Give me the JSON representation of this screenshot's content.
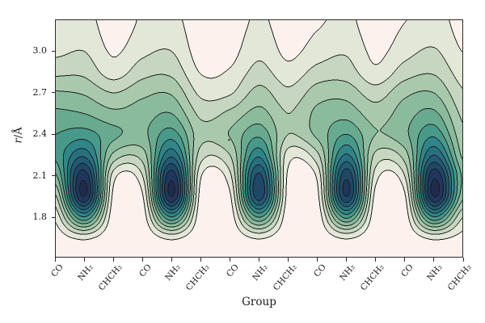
{
  "chart_data": {
    "type": "contour_filled",
    "title": "",
    "xlabel": "Group",
    "ylabel_var": "r",
    "ylabel_unit": "/Å",
    "x_categories": [
      "CO",
      "NH₂",
      "CHCH₂",
      "CO",
      "NH₂",
      "CHCH₂",
      "CO",
      "NH₂",
      "CHCH₂",
      "CO",
      "NH₂",
      "CHCH₂",
      "CO",
      "NH₂",
      "CHCH₂"
    ],
    "y_ticks": [
      {
        "label": "1.8",
        "value": 1.8
      },
      {
        "label": "2.1",
        "value": 2.1
      },
      {
        "label": "2.4",
        "value": 2.4
      },
      {
        "label": "2.7",
        "value": 2.7
      },
      {
        "label": "3.0",
        "value": 3.0
      }
    ],
    "y_range": [
      1.51,
      3.23
    ],
    "grid": {
      "r_values": [
        1.5,
        1.65,
        1.8,
        1.95,
        2.1,
        2.25,
        2.4,
        2.55,
        2.7,
        2.85,
        3.0,
        3.15,
        3.3
      ],
      "z": [
        [
          0.005,
          0.01,
          0.0,
          0.0,
          0.01,
          0.0,
          0.0,
          0.009,
          0.0,
          0.0,
          0.009,
          0.0,
          0.0,
          0.01,
          0.005
        ],
        [
          0.03,
          0.1,
          0.008,
          0.008,
          0.1,
          0.006,
          0.008,
          0.09,
          0.005,
          0.008,
          0.09,
          0.006,
          0.008,
          0.1,
          0.05
        ],
        [
          0.1,
          0.55,
          0.025,
          0.03,
          0.55,
          0.018,
          0.028,
          0.48,
          0.015,
          0.022,
          0.5,
          0.018,
          0.028,
          0.55,
          0.16
        ],
        [
          0.22,
          0.96,
          0.055,
          0.07,
          0.96,
          0.04,
          0.065,
          0.845,
          0.04,
          0.055,
          0.88,
          0.045,
          0.065,
          0.96,
          0.34
        ],
        [
          0.38,
          0.93,
          0.12,
          0.16,
          0.93,
          0.09,
          0.14,
          0.82,
          0.06,
          0.1,
          0.86,
          0.12,
          0.16,
          0.94,
          0.38
        ],
        [
          0.5,
          0.7,
          0.3,
          0.28,
          0.7,
          0.2,
          0.24,
          0.62,
          0.12,
          0.22,
          0.65,
          0.22,
          0.28,
          0.72,
          0.3
        ],
        [
          0.48,
          0.52,
          0.42,
          0.38,
          0.52,
          0.27,
          0.325,
          0.46,
          0.24,
          0.34,
          0.48,
          0.32,
          0.38,
          0.54,
          0.26
        ],
        [
          0.42,
          0.4,
          0.34,
          0.36,
          0.4,
          0.22,
          0.26,
          0.35,
          0.24,
          0.34,
          0.37,
          0.28,
          0.36,
          0.42,
          0.22
        ],
        [
          0.33,
          0.31,
          0.24,
          0.3,
          0.31,
          0.14,
          0.15,
          0.27,
          0.18,
          0.28,
          0.29,
          0.2,
          0.3,
          0.32,
          0.17
        ],
        [
          0.22,
          0.22,
          0.12,
          0.21,
          0.22,
          0.075,
          0.09,
          0.19,
          0.11,
          0.19,
          0.2,
          0.1,
          0.2,
          0.23,
          0.12
        ],
        [
          0.14,
          0.16,
          0.07,
          0.14,
          0.16,
          0.04,
          0.05,
          0.14,
          0.06,
          0.12,
          0.15,
          0.06,
          0.13,
          0.17,
          0.078
        ],
        [
          0.095,
          0.12,
          0.045,
          0.1,
          0.12,
          0.028,
          0.035,
          0.105,
          0.04,
          0.08,
          0.11,
          0.04,
          0.09,
          0.125,
          0.055
        ],
        [
          0.075,
          0.1,
          0.035,
          0.085,
          0.1,
          0.02,
          0.025,
          0.088,
          0.03,
          0.06,
          0.092,
          0.03,
          0.07,
          0.105,
          0.045
        ]
      ]
    },
    "levels": [
      0.08,
      0.16,
      0.24,
      0.32,
      0.4,
      0.48,
      0.56,
      0.64,
      0.72,
      0.8,
      0.88,
      0.96
    ],
    "colors": [
      "#fcf1ed",
      "#e2e7d8",
      "#c6d6c1",
      "#a9c9ad",
      "#8abb9d",
      "#68aa90",
      "#479a8a",
      "#308589",
      "#28707f",
      "#225b73",
      "#1f4767",
      "#20365c",
      "#202a4d"
    ],
    "line_color": "#1b1b1b",
    "background": "#ffffff",
    "spot": {
      "x_index": 5.97,
      "r": 2.36
    },
    "legend": null,
    "grid_lines": false
  }
}
